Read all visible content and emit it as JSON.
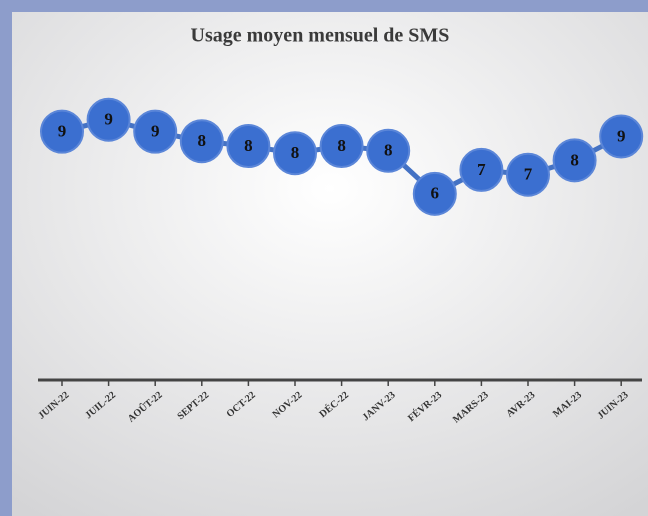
{
  "chart_data": {
    "type": "line",
    "title": "Usage moyen mensuel de SMS",
    "categories": [
      "JUIN-22",
      "JUIL-22",
      "AOÛT-22",
      "SEPT-22",
      "OCT-22",
      "NOV-22",
      "DÉC-22",
      "JANV-23",
      "FÉVR-23",
      "MARS-23",
      "AVR-23",
      "MAI-23",
      "JUIN-23"
    ],
    "series": [
      {
        "name": "SMS",
        "color": "#4472c4",
        "values": [
          8.8,
          9.3,
          8.8,
          8.4,
          8.2,
          7.9,
          8.2,
          8.0,
          6.2,
          7.2,
          7.0,
          7.6,
          8.6
        ],
        "value_labels": [
          "9",
          "9",
          "9",
          "8",
          "8",
          "8",
          "8",
          "8",
          "6",
          "7",
          "7",
          "8",
          "9"
        ]
      }
    ],
    "ylim": [
      0,
      10
    ]
  }
}
